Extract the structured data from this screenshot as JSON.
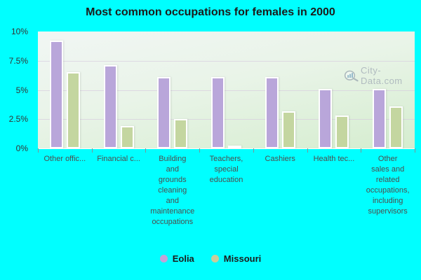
{
  "title": "Most common occupations for females in 2000",
  "watermark": {
    "text": "City-Data.com"
  },
  "colors": {
    "background": "#00ffff",
    "plot_gradient_top": "#f1f6f4",
    "plot_gradient_bottom": "#d5edcf",
    "gridline": "#d5c9dd",
    "eolia_bar": "#b9a6da",
    "missouri_bar": "#c4d6a0",
    "axis_text": "#4d4d4d",
    "title_text": "#1b1b1b",
    "watermark_text": "#aeb9be"
  },
  "legend": {
    "items": [
      {
        "label": "Eolia",
        "color": "#c2a3d8"
      },
      {
        "label": "Missouri",
        "color": "#c9cd9b"
      }
    ]
  },
  "chart_data": {
    "type": "bar",
    "title": "Most common occupations for females in 2000",
    "categories": [
      "Other offic...",
      "Financial c...",
      "Building and grounds cleaning and maintenance occupations",
      "Teachers, special education",
      "Cashiers",
      "Health tec...",
      "Other sales and related occupations, including supervisors"
    ],
    "display_labels": [
      "Other offic...",
      "Financial c...",
      "Building\nand\ngrounds\ncleaning\nand\nmaintenance\noccupations",
      "Teachers,\nspecial\neducation",
      "Cashiers",
      "Health tec...",
      "Other\nsales and\nrelated\noccupations,\nincluding\nsupervisors"
    ],
    "series": [
      {
        "name": "Eolia",
        "color": "#b9a6da",
        "values": [
          9.2,
          7.1,
          6.1,
          6.1,
          6.1,
          5.1,
          5.1
        ]
      },
      {
        "name": "Missouri",
        "color": "#c4d6a0",
        "values": [
          6.5,
          1.9,
          2.5,
          0.2,
          3.2,
          2.8,
          3.6
        ]
      }
    ],
    "ylabel": "",
    "xlabel": "",
    "ylim": [
      0,
      10
    ],
    "yticks": [
      {
        "label": "10%",
        "value": 10
      },
      {
        "label": "7.5%",
        "value": 7.5
      },
      {
        "label": "5%",
        "value": 5
      },
      {
        "label": "2.5%",
        "value": 2.5
      },
      {
        "label": "0%",
        "value": 0
      }
    ],
    "grid": true,
    "legend_position": "bottom"
  }
}
